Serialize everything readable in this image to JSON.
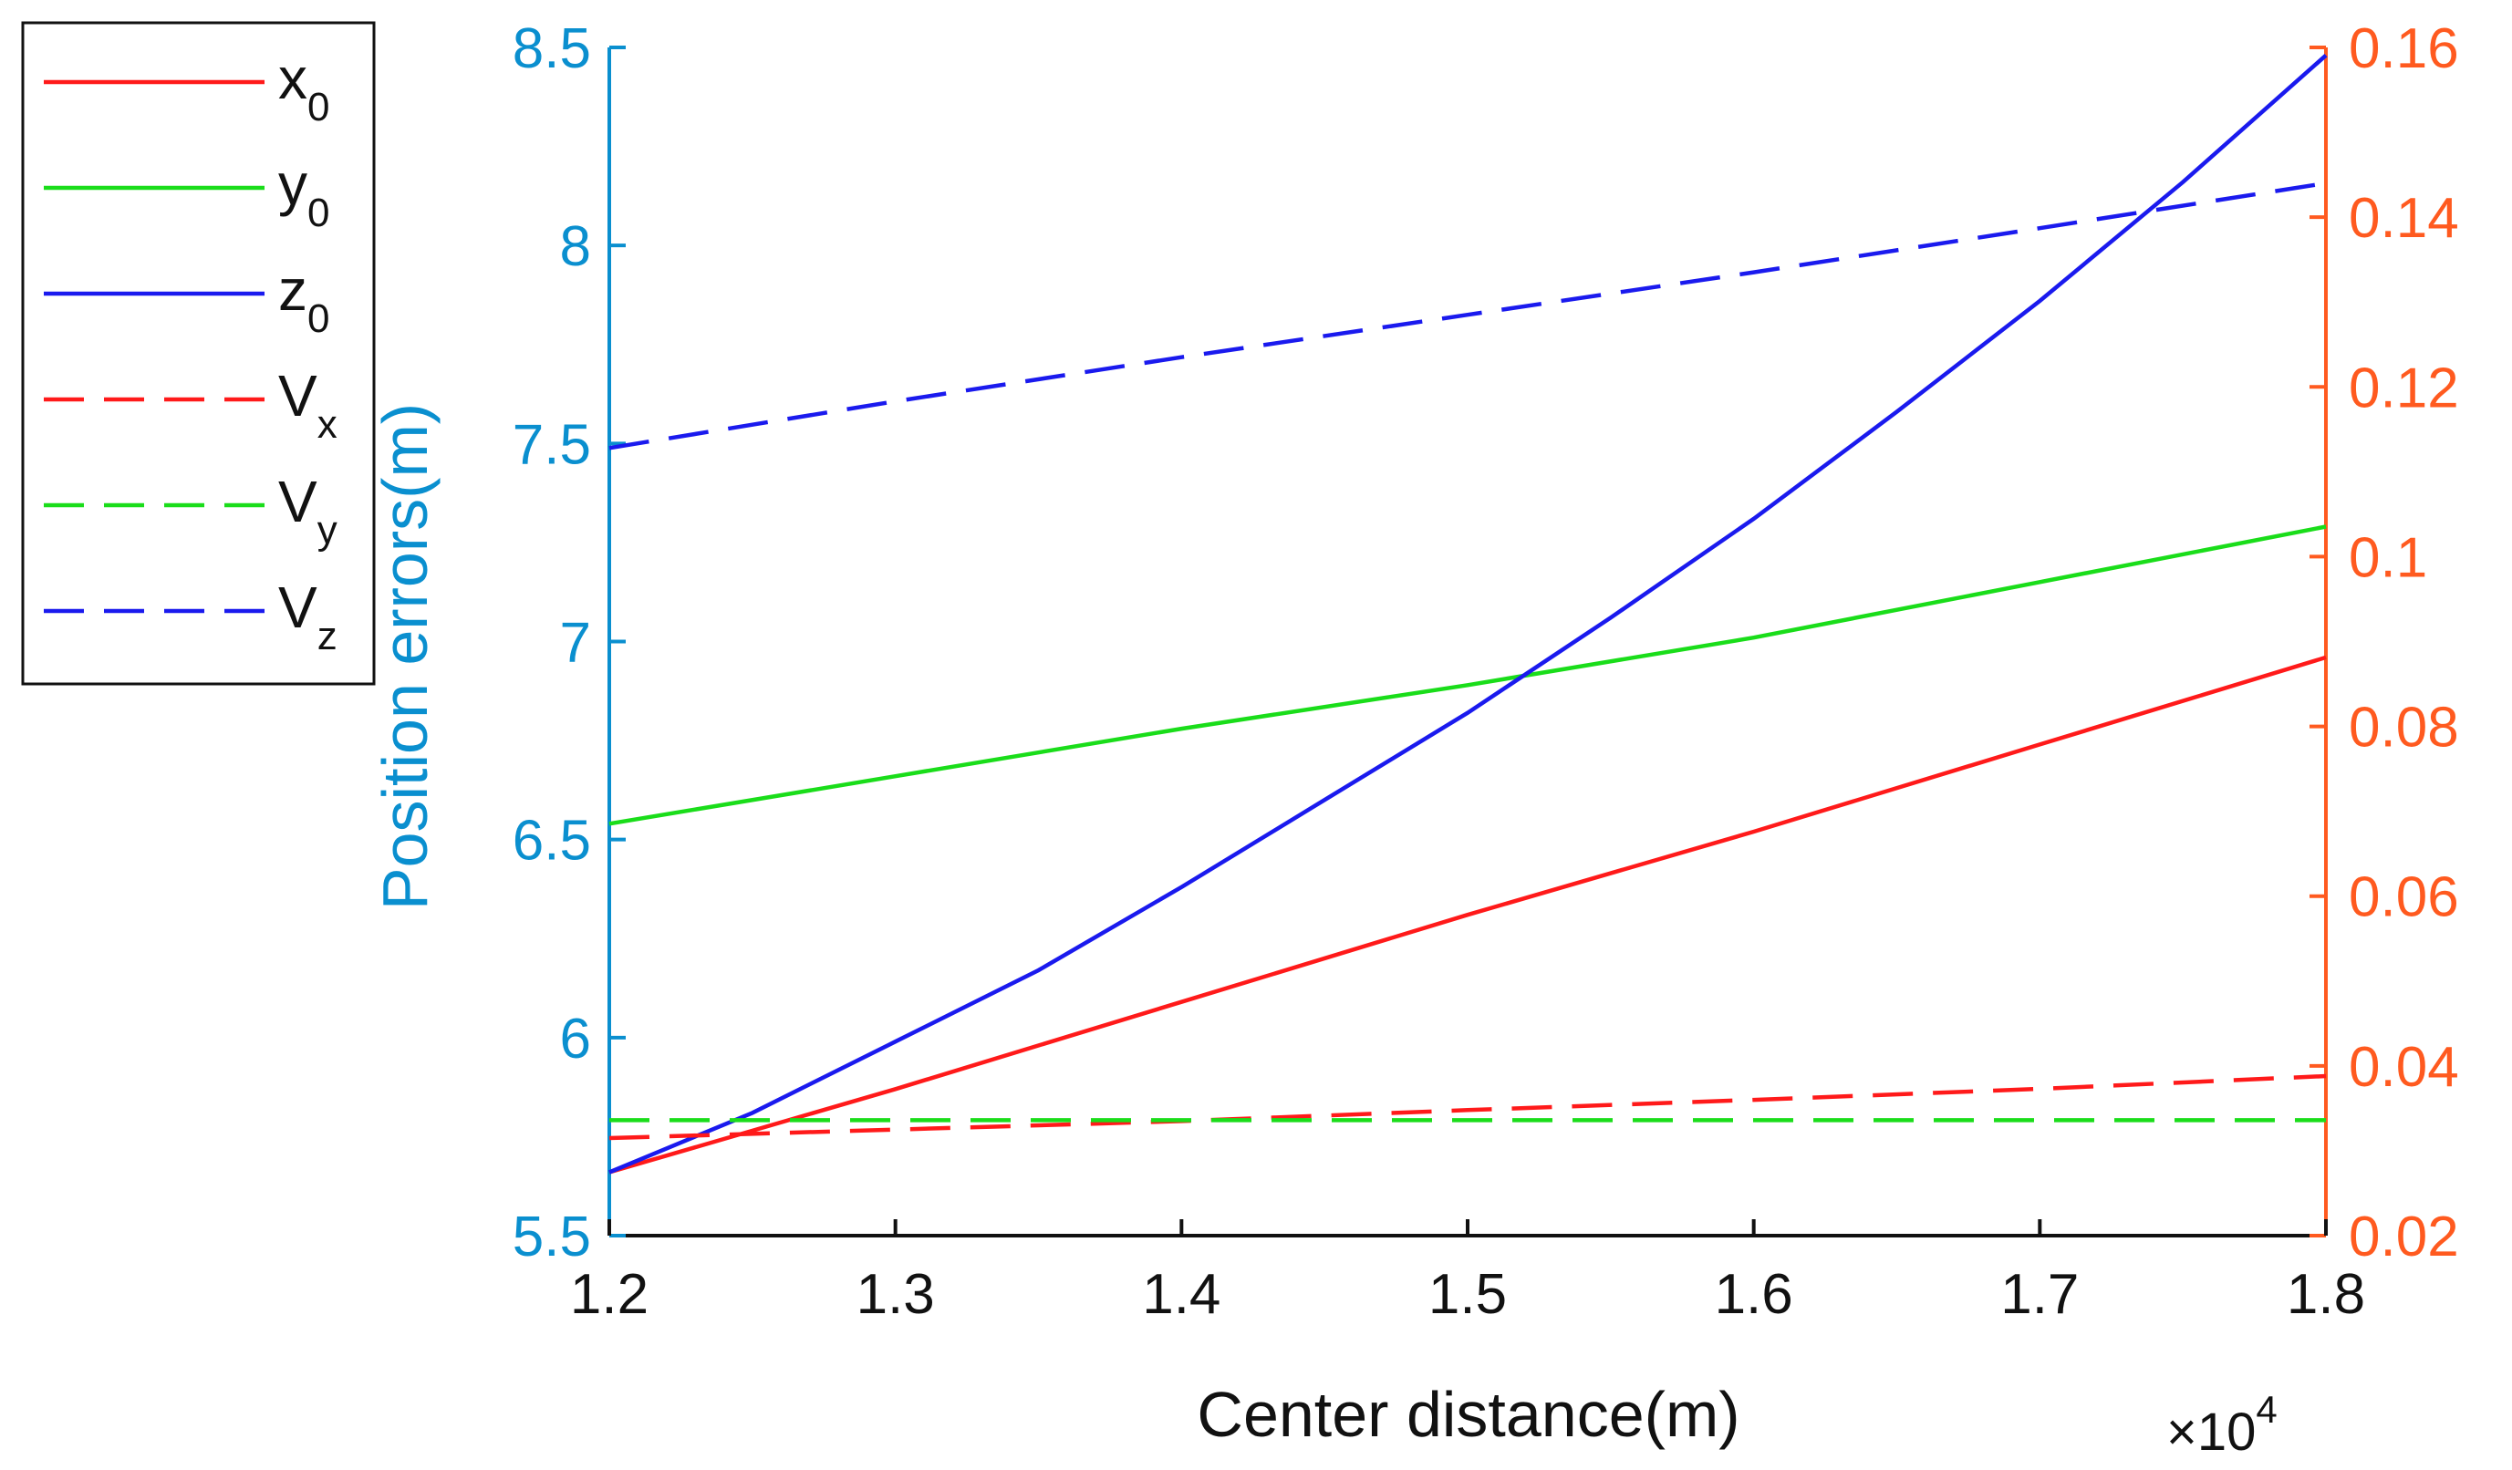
{
  "chart_data": {
    "type": "line",
    "xlabel": "Center distance(m)",
    "ylabel_left": "Position errors(m)",
    "x_exponent_label": "×10",
    "x_exponent_power": "4",
    "xlim": [
      1.2,
      1.8
    ],
    "ylim_left": [
      5.5,
      8.5
    ],
    "ylim_right": [
      0.02,
      0.16
    ],
    "x_ticks": [
      1.2,
      1.3,
      1.4,
      1.5,
      1.6,
      1.7,
      1.8
    ],
    "x_tick_labels": [
      "1.2",
      "1.3",
      "1.4",
      "1.5",
      "1.6",
      "1.7",
      "1.8"
    ],
    "y_left_ticks": [
      5.5,
      6,
      6.5,
      7,
      7.5,
      8,
      8.5
    ],
    "y_left_tick_labels": [
      "5.5",
      "6",
      "6.5",
      "7",
      "7.5",
      "8",
      "8.5"
    ],
    "y_right_ticks": [
      0.02,
      0.04,
      0.06,
      0.08,
      0.1,
      0.12,
      0.14,
      0.16
    ],
    "y_right_tick_labels": [
      "0.02",
      "0.04",
      "0.06",
      "0.08",
      "0.1",
      "0.12",
      "0.14",
      "0.16"
    ],
    "left_axis_color": "#0a8fcf",
    "right_axis_color": "#ff5a1f",
    "grid": false,
    "legend_position": "outside-left-top",
    "series": [
      {
        "name": "x",
        "subscript": "0",
        "axis": "left",
        "color": "#ff1a1a",
        "dash": "solid",
        "x": [
          1.2,
          1.3,
          1.4,
          1.5,
          1.6,
          1.7,
          1.8
        ],
        "y": [
          5.66,
          5.87,
          6.09,
          6.31,
          6.52,
          6.74,
          6.96
        ]
      },
      {
        "name": "y",
        "subscript": "0",
        "axis": "left",
        "color": "#1add1a",
        "dash": "solid",
        "x": [
          1.2,
          1.3,
          1.4,
          1.5,
          1.6,
          1.7,
          1.8
        ],
        "y": [
          6.54,
          6.66,
          6.78,
          6.89,
          7.01,
          7.15,
          7.29
        ]
      },
      {
        "name": "z",
        "subscript": "0",
        "axis": "left",
        "color": "#1a1aee",
        "dash": "solid",
        "x": [
          1.2,
          1.25,
          1.3,
          1.35,
          1.4,
          1.45,
          1.5,
          1.55,
          1.6,
          1.65,
          1.7,
          1.75,
          1.8
        ],
        "y": [
          5.66,
          5.81,
          5.99,
          6.17,
          6.38,
          6.6,
          6.82,
          7.06,
          7.31,
          7.58,
          7.86,
          8.16,
          8.48
        ]
      },
      {
        "name": "V",
        "subscript": "x",
        "axis": "right",
        "color": "#ff1a1a",
        "dash": "dashed",
        "x": [
          1.2,
          1.3,
          1.4,
          1.5,
          1.6,
          1.7,
          1.8
        ],
        "y": [
          0.0315,
          0.0325,
          0.0335,
          0.0348,
          0.036,
          0.0373,
          0.0388
        ]
      },
      {
        "name": "V",
        "subscript": "y",
        "axis": "right",
        "color": "#1add1a",
        "dash": "dashed",
        "x": [
          1.2,
          1.3,
          1.4,
          1.5,
          1.6,
          1.7,
          1.8
        ],
        "y": [
          0.0336,
          0.0336,
          0.0336,
          0.0336,
          0.0336,
          0.0336,
          0.0336
        ]
      },
      {
        "name": "V",
        "subscript": "z",
        "axis": "right",
        "color": "#1a1aee",
        "dash": "dashed",
        "x": [
          1.2,
          1.3,
          1.4,
          1.5,
          1.6,
          1.7,
          1.8
        ],
        "y": [
          0.1128,
          0.1183,
          0.1235,
          0.1285,
          0.1335,
          0.1387,
          0.144
        ]
      }
    ]
  }
}
